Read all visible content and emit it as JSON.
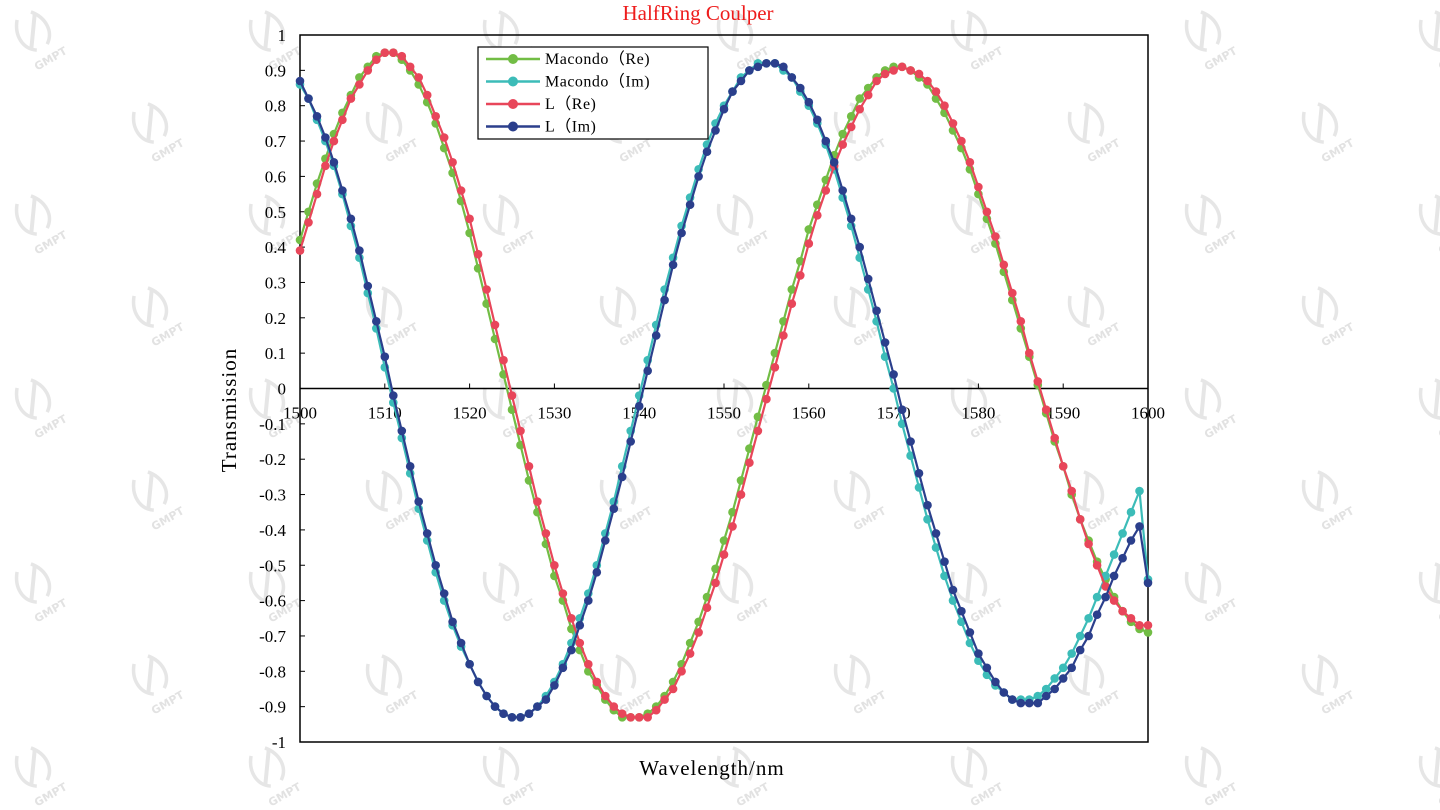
{
  "watermark": {
    "text": "GMPT",
    "icon": "gmpt-logo-icon"
  },
  "chart_data": {
    "type": "line",
    "title": "HalfRing Coulper",
    "xlabel": "Wavelength/nm",
    "ylabel": "Transmission",
    "xlim": [
      1500,
      1600
    ],
    "ylim": [
      -1,
      1
    ],
    "x_ticks": [
      1500,
      1510,
      1520,
      1530,
      1540,
      1550,
      1560,
      1570,
      1580,
      1590,
      1600
    ],
    "x_tick_labels": [
      "1500",
      "1510",
      "1520",
      "1530",
      "1540",
      "1550",
      "1560",
      "1570",
      "1580",
      "1590",
      "1600"
    ],
    "y_ticks": [
      1,
      0.9,
      0.8,
      0.7,
      0.6,
      0.5,
      0.4,
      0.3,
      0.2,
      0.1,
      0,
      -0.1,
      -0.2,
      -0.3,
      -0.4,
      -0.5,
      -0.6,
      -0.7,
      -0.8,
      -0.9,
      -1
    ],
    "y_tick_labels": [
      "1",
      "0.9",
      "0.8",
      "0.7",
      "0.6",
      "0.5",
      "0.4",
      "0.3",
      "0.2",
      "0.1",
      "0",
      "-0.1",
      "-0.2",
      "-0.3",
      "-0.4",
      "-0.5",
      "-0.6",
      "-0.7",
      "-0.8",
      "-0.9",
      "-1"
    ],
    "grid": false,
    "legend_position": "top-left",
    "x": [
      1500,
      1501,
      1502,
      1503,
      1504,
      1505,
      1506,
      1507,
      1508,
      1509,
      1510,
      1511,
      1512,
      1513,
      1514,
      1515,
      1516,
      1517,
      1518,
      1519,
      1520,
      1521,
      1522,
      1523,
      1524,
      1525,
      1526,
      1527,
      1528,
      1529,
      1530,
      1531,
      1532,
      1533,
      1534,
      1535,
      1536,
      1537,
      1538,
      1539,
      1540,
      1541,
      1542,
      1543,
      1544,
      1545,
      1546,
      1547,
      1548,
      1549,
      1550,
      1551,
      1552,
      1553,
      1554,
      1555,
      1556,
      1557,
      1558,
      1559,
      1560,
      1561,
      1562,
      1563,
      1564,
      1565,
      1566,
      1567,
      1568,
      1569,
      1570,
      1571,
      1572,
      1573,
      1574,
      1575,
      1576,
      1577,
      1578,
      1579,
      1580,
      1581,
      1582,
      1583,
      1584,
      1585,
      1586,
      1587,
      1588,
      1589,
      1590,
      1591,
      1592,
      1593,
      1594,
      1595,
      1596,
      1597,
      1598,
      1599,
      1600
    ],
    "series": [
      {
        "name": "Macondo（Re)",
        "color": "#72bd45",
        "values": [
          0.42,
          0.5,
          0.58,
          0.65,
          0.72,
          0.78,
          0.83,
          0.88,
          0.91,
          0.94,
          0.95,
          0.95,
          0.93,
          0.9,
          0.86,
          0.81,
          0.75,
          0.68,
          0.61,
          0.53,
          0.44,
          0.34,
          0.24,
          0.14,
          0.04,
          -0.06,
          -0.16,
          -0.26,
          -0.35,
          -0.44,
          -0.53,
          -0.6,
          -0.68,
          -0.74,
          -0.8,
          -0.84,
          -0.88,
          -0.91,
          -0.93,
          -0.93,
          -0.93,
          -0.92,
          -0.9,
          -0.87,
          -0.83,
          -0.78,
          -0.72,
          -0.66,
          -0.59,
          -0.51,
          -0.43,
          -0.35,
          -0.26,
          -0.17,
          -0.08,
          0.01,
          0.1,
          0.19,
          0.28,
          0.36,
          0.45,
          0.52,
          0.59,
          0.66,
          0.72,
          0.77,
          0.82,
          0.85,
          0.88,
          0.9,
          0.91,
          0.91,
          0.9,
          0.88,
          0.86,
          0.82,
          0.78,
          0.73,
          0.68,
          0.62,
          0.55,
          0.48,
          0.41,
          0.33,
          0.25,
          0.17,
          0.09,
          0.01,
          -0.07,
          -0.15,
          -0.22,
          -0.3,
          -0.37,
          -0.43,
          -0.49,
          -0.54,
          -0.59,
          -0.63,
          -0.66,
          -0.68,
          -0.69
        ]
      },
      {
        "name": "Macondo（Im)",
        "color": "#3cbcb8",
        "values": [
          0.86,
          0.82,
          0.76,
          0.7,
          0.63,
          0.55,
          0.46,
          0.37,
          0.27,
          0.17,
          0.06,
          -0.04,
          -0.14,
          -0.24,
          -0.34,
          -0.43,
          -0.52,
          -0.6,
          -0.67,
          -0.73,
          -0.78,
          -0.83,
          -0.87,
          -0.9,
          -0.92,
          -0.93,
          -0.93,
          -0.92,
          -0.9,
          -0.87,
          -0.83,
          -0.78,
          -0.72,
          -0.65,
          -0.58,
          -0.5,
          -0.41,
          -0.32,
          -0.22,
          -0.12,
          -0.02,
          0.08,
          0.18,
          0.28,
          0.37,
          0.46,
          0.54,
          0.62,
          0.69,
          0.75,
          0.8,
          0.84,
          0.88,
          0.9,
          0.92,
          0.92,
          0.92,
          0.9,
          0.88,
          0.84,
          0.8,
          0.75,
          0.69,
          0.62,
          0.54,
          0.46,
          0.37,
          0.28,
          0.19,
          0.09,
          0.0,
          -0.1,
          -0.19,
          -0.28,
          -0.37,
          -0.45,
          -0.53,
          -0.6,
          -0.66,
          -0.72,
          -0.77,
          -0.81,
          -0.84,
          -0.86,
          -0.88,
          -0.88,
          -0.88,
          -0.87,
          -0.85,
          -0.82,
          -0.79,
          -0.75,
          -0.7,
          -0.65,
          -0.59,
          -0.53,
          -0.47,
          -0.41,
          -0.35,
          -0.29,
          -0.54
        ]
      },
      {
        "name": "L（Re)",
        "color": "#e8465a",
        "values": [
          0.39,
          0.47,
          0.55,
          0.63,
          0.7,
          0.76,
          0.82,
          0.86,
          0.9,
          0.93,
          0.95,
          0.95,
          0.94,
          0.91,
          0.88,
          0.83,
          0.77,
          0.71,
          0.64,
          0.56,
          0.48,
          0.38,
          0.28,
          0.18,
          0.08,
          -0.02,
          -0.12,
          -0.22,
          -0.32,
          -0.41,
          -0.5,
          -0.58,
          -0.65,
          -0.72,
          -0.78,
          -0.83,
          -0.87,
          -0.9,
          -0.92,
          -0.93,
          -0.93,
          -0.93,
          -0.91,
          -0.88,
          -0.85,
          -0.8,
          -0.75,
          -0.69,
          -0.62,
          -0.55,
          -0.47,
          -0.39,
          -0.3,
          -0.21,
          -0.12,
          -0.03,
          0.06,
          0.15,
          0.24,
          0.32,
          0.41,
          0.49,
          0.56,
          0.63,
          0.69,
          0.74,
          0.79,
          0.83,
          0.87,
          0.89,
          0.9,
          0.91,
          0.9,
          0.89,
          0.87,
          0.84,
          0.8,
          0.75,
          0.7,
          0.64,
          0.57,
          0.5,
          0.43,
          0.35,
          0.27,
          0.19,
          0.1,
          0.02,
          -0.06,
          -0.14,
          -0.22,
          -0.29,
          -0.37,
          -0.44,
          -0.5,
          -0.56,
          -0.6,
          -0.63,
          -0.65,
          -0.67,
          -0.67
        ]
      },
      {
        "name": "L（Im)",
        "color": "#2b3f8c",
        "values": [
          0.87,
          0.82,
          0.77,
          0.71,
          0.64,
          0.56,
          0.48,
          0.39,
          0.29,
          0.19,
          0.09,
          -0.02,
          -0.12,
          -0.22,
          -0.32,
          -0.41,
          -0.5,
          -0.58,
          -0.66,
          -0.72,
          -0.78,
          -0.83,
          -0.87,
          -0.9,
          -0.92,
          -0.93,
          -0.93,
          -0.92,
          -0.9,
          -0.88,
          -0.84,
          -0.79,
          -0.74,
          -0.67,
          -0.6,
          -0.52,
          -0.43,
          -0.34,
          -0.25,
          -0.15,
          -0.05,
          0.05,
          0.15,
          0.25,
          0.35,
          0.44,
          0.52,
          0.6,
          0.67,
          0.73,
          0.79,
          0.84,
          0.87,
          0.9,
          0.91,
          0.92,
          0.92,
          0.91,
          0.88,
          0.85,
          0.81,
          0.76,
          0.7,
          0.64,
          0.56,
          0.48,
          0.4,
          0.31,
          0.22,
          0.13,
          0.04,
          -0.06,
          -0.15,
          -0.24,
          -0.33,
          -0.41,
          -0.49,
          -0.57,
          -0.63,
          -0.69,
          -0.75,
          -0.79,
          -0.83,
          -0.86,
          -0.88,
          -0.89,
          -0.89,
          -0.89,
          -0.87,
          -0.85,
          -0.82,
          -0.79,
          -0.74,
          -0.7,
          -0.64,
          -0.59,
          -0.53,
          -0.48,
          -0.43,
          -0.39,
          -0.55
        ]
      }
    ]
  }
}
